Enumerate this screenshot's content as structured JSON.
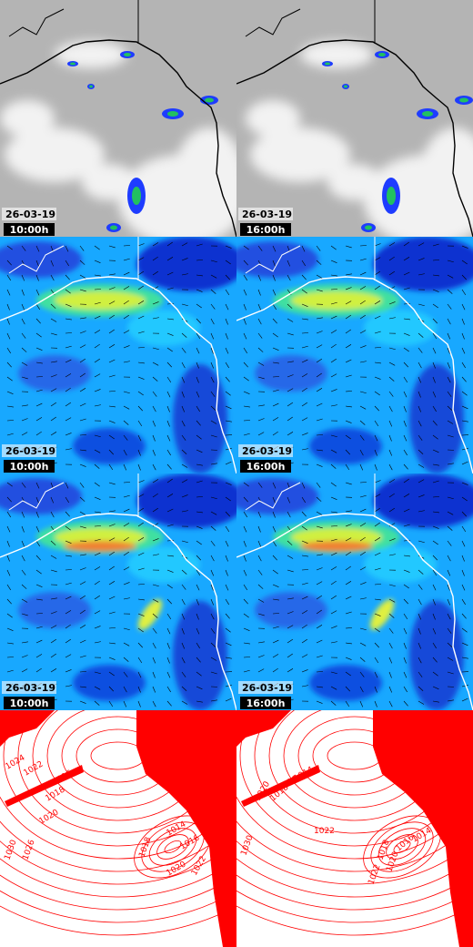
{
  "panels": [
    {
      "date": "26-03-19",
      "time": "10:00h"
    },
    {
      "date": "26-03-19",
      "time": "16:00h"
    },
    {
      "date": "26-03-19",
      "time": "10:00h"
    },
    {
      "date": "26-03-19",
      "time": "16:00h"
    },
    {
      "date": "26-03-19",
      "time": "10:00h"
    },
    {
      "date": "26-03-19",
      "time": "16:00h"
    }
  ],
  "pressure_panels": [
    {
      "isobar_labels": [
        "1024",
        "1022",
        "1016",
        "1018",
        "1020",
        "1026",
        "1030",
        "1014",
        "1016",
        "1018",
        "1020",
        "1022"
      ]
    },
    {
      "isobar_labels": [
        "1020",
        "1014",
        "1016",
        "1018",
        "1022",
        "1030",
        "1014",
        "1016",
        "1018",
        "1020",
        "1022"
      ]
    }
  ]
}
